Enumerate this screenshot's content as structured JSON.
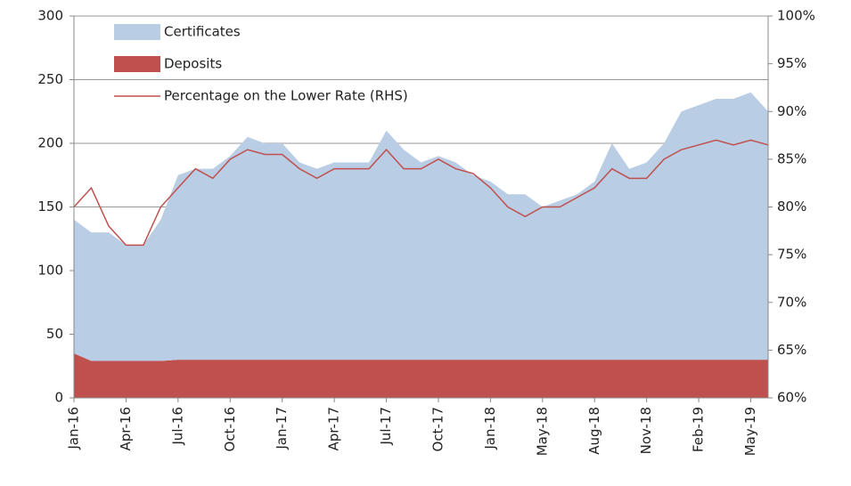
{
  "chart_data": {
    "type": "stacked-area-line",
    "categories": [
      "Jan-16",
      null,
      null,
      "Apr-16",
      null,
      null,
      "Jul-16",
      null,
      null,
      "Oct-16",
      null,
      null,
      "Jan-17",
      null,
      null,
      "Apr-17",
      null,
      null,
      "Jul-17",
      null,
      null,
      "Oct-17",
      null,
      null,
      "Jan-18",
      null,
      null,
      "May-18",
      null,
      null,
      "Aug-18",
      null,
      null,
      "Nov-18",
      null,
      null,
      "Feb-19",
      null,
      null,
      "May-19",
      null
    ],
    "series": [
      {
        "name": "Deposits",
        "kind": "area",
        "color": "#c0504d",
        "values": [
          35,
          29,
          29,
          29,
          29,
          29,
          30,
          30,
          30,
          30,
          30,
          30,
          30,
          30,
          30,
          30,
          30,
          30,
          30,
          30,
          30,
          30,
          30,
          30,
          30,
          30,
          30,
          30,
          30,
          30,
          30,
          30,
          30,
          30,
          30,
          30,
          30,
          30,
          30,
          30,
          30
        ]
      },
      {
        "name": "Certificates",
        "kind": "area",
        "color": "#b9cde5",
        "values": [
          105,
          101,
          101,
          91,
          91,
          111,
          145,
          150,
          150,
          160,
          175,
          170,
          170,
          155,
          150,
          155,
          155,
          155,
          180,
          165,
          155,
          160,
          155,
          145,
          140,
          130,
          130,
          120,
          125,
          130,
          140,
          170,
          150,
          155,
          170,
          195,
          200,
          205,
          205,
          210,
          195
        ]
      },
      {
        "name": "Percentage on the Lower Rate (RHS)",
        "kind": "line",
        "axis": "y2",
        "color": "#c0504d",
        "values": [
          80,
          82,
          78,
          76,
          76,
          80,
          82,
          84,
          83,
          85,
          86,
          85.5,
          85.5,
          84,
          83,
          84,
          84,
          84,
          86,
          84,
          84,
          85,
          84,
          83.5,
          82,
          80,
          79,
          80,
          80,
          81,
          82,
          84,
          83,
          83,
          85,
          86,
          86.5,
          87,
          86.5,
          87,
          86.5
        ]
      }
    ],
    "ylim": [
      0,
      300
    ],
    "yticks": [
      0,
      50,
      100,
      150,
      200,
      250,
      300
    ],
    "y2lim": [
      60,
      100
    ],
    "y2ticks": [
      {
        "value": 60,
        "label": "60%"
      },
      {
        "value": 65,
        "label": "65%"
      },
      {
        "value": 70,
        "label": "70%"
      },
      {
        "value": 75,
        "label": "75%"
      },
      {
        "value": 80,
        "label": "80%"
      },
      {
        "value": 85,
        "label": "85%"
      },
      {
        "value": 90,
        "label": "90%"
      },
      {
        "value": 95,
        "label": "95%"
      },
      {
        "value": 100,
        "label": "100%"
      }
    ],
    "grid": true
  }
}
